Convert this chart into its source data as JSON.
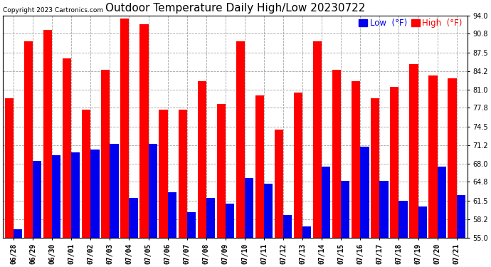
{
  "title": "Outdoor Temperature Daily High/Low 20230722",
  "copyright": "Copyright 2023 Cartronics.com",
  "legend_low": "Low  (°F)",
  "legend_high": "High  (°F)",
  "dates": [
    "06/28",
    "06/29",
    "06/30",
    "07/01",
    "07/02",
    "07/03",
    "07/04",
    "07/05",
    "07/06",
    "07/07",
    "07/08",
    "07/09",
    "07/10",
    "07/11",
    "07/12",
    "07/13",
    "07/14",
    "07/15",
    "07/16",
    "07/17",
    "07/18",
    "07/19",
    "07/20",
    "07/21"
  ],
  "highs": [
    79.5,
    89.5,
    91.5,
    86.5,
    77.5,
    84.5,
    93.5,
    92.5,
    77.5,
    77.5,
    82.5,
    78.5,
    89.5,
    80.0,
    74.0,
    80.5,
    89.5,
    84.5,
    82.5,
    79.5,
    81.5,
    85.5,
    83.5,
    83.0
  ],
  "lows": [
    56.5,
    68.5,
    69.5,
    70.0,
    70.5,
    71.5,
    62.0,
    71.5,
    63.0,
    59.5,
    62.0,
    61.0,
    65.5,
    64.5,
    59.0,
    57.0,
    67.5,
    65.0,
    71.0,
    65.0,
    61.5,
    60.5,
    67.5,
    62.5
  ],
  "ylim": [
    55.0,
    94.0
  ],
  "yticks": [
    55.0,
    58.2,
    61.5,
    64.8,
    68.0,
    71.2,
    74.5,
    77.8,
    81.0,
    84.2,
    87.5,
    90.8,
    94.0
  ],
  "bar_width": 0.45,
  "high_color": "#ff0000",
  "low_color": "#0000ee",
  "background_color": "#ffffff",
  "grid_color": "#999999",
  "title_fontsize": 11,
  "tick_fontsize": 7,
  "legend_fontsize": 8.5
}
